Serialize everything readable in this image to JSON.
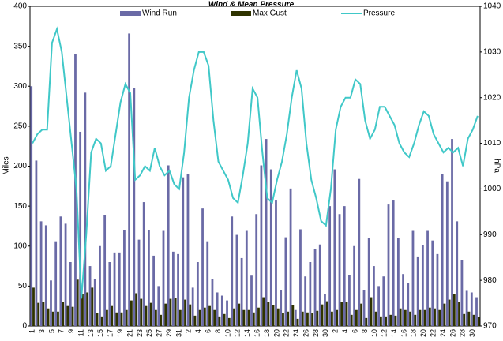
{
  "chart_data": {
    "type": "bar_line",
    "title": "Wind & Mean Pressure",
    "y_label": "Miles",
    "y2_label": "hPa",
    "categories": [
      "1",
      null,
      "3",
      null,
      "5",
      null,
      "7",
      null,
      "9",
      null,
      "11",
      null,
      "13",
      null,
      "15",
      null,
      "17",
      null,
      "19",
      null,
      "21",
      null,
      "23",
      null,
      "25",
      null,
      "27",
      null,
      "29",
      null,
      "31",
      null,
      "2",
      null,
      "4",
      null,
      "6",
      null,
      "8",
      null,
      "10",
      null,
      "12",
      null,
      "14",
      null,
      "16",
      null,
      "18",
      null,
      "20",
      null,
      "22",
      null,
      "24",
      null,
      "26",
      null,
      "28",
      null,
      "30",
      null,
      "2",
      null,
      "4",
      null,
      "6",
      null,
      "8",
      null,
      "10",
      null,
      "12",
      null,
      "14",
      null,
      "16",
      null,
      "18",
      null,
      "20",
      null,
      "22",
      null,
      "24",
      null,
      "26",
      null,
      "28",
      null,
      "30",
      null
    ],
    "series": [
      {
        "name": "Wind Run",
        "color": "#6a6aa6",
        "kind": "bar",
        "values": [
          300,
          207,
          131,
          126,
          57,
          106,
          137,
          128,
          80,
          340,
          243,
          292,
          75,
          59,
          100,
          139,
          80,
          92,
          92,
          120,
          366,
          298,
          108,
          155,
          120,
          88,
          50,
          119,
          201,
          93,
          90,
          186,
          190,
          48,
          80,
          147,
          106,
          59,
          42,
          38,
          32,
          137,
          114,
          85,
          119,
          63,
          140,
          201,
          234,
          196,
          157,
          45,
          111,
          172,
          20,
          121,
          62,
          80,
          96,
          102,
          40,
          150,
          196,
          140,
          150,
          64,
          100,
          184,
          45,
          110,
          75,
          50,
          62,
          152,
          157,
          110,
          65,
          54,
          119,
          87,
          101,
          119,
          107,
          90,
          190,
          181,
          234,
          131,
          82,
          44,
          42,
          36
        ]
      },
      {
        "name": "Max Gust",
        "color": "#2f3300",
        "kind": "bar",
        "values": [
          48,
          29,
          30,
          22,
          18,
          18,
          30,
          25,
          24,
          58,
          40,
          42,
          48,
          16,
          12,
          20,
          25,
          17,
          17,
          20,
          32,
          41,
          34,
          25,
          29,
          20,
          14,
          28,
          34,
          35,
          20,
          33,
          27,
          13,
          20,
          23,
          25,
          20,
          12,
          15,
          10,
          22,
          28,
          20,
          20,
          17,
          23,
          36,
          30,
          26,
          22,
          16,
          18,
          26,
          9,
          18,
          17,
          16,
          19,
          27,
          31,
          18,
          20,
          30,
          30,
          14,
          20,
          28,
          10,
          36,
          18,
          12,
          12,
          14,
          13,
          22,
          20,
          18,
          14,
          20,
          20,
          23,
          22,
          20,
          28,
          33,
          40,
          30,
          15,
          18,
          14,
          11
        ]
      },
      {
        "name": "Pressure",
        "color": "#40c8c8",
        "kind": "line",
        "axis": "y2",
        "values": [
          1010,
          1012,
          1013,
          1013,
          1032,
          1035,
          1030,
          1020,
          1010,
          1000,
          976,
          990,
          1008,
          1011,
          1010,
          1004,
          1005,
          1012,
          1019,
          1023,
          1021,
          1002,
          1003,
          1005,
          1004,
          1009,
          1005,
          1003,
          1004,
          1001,
          1000,
          1008,
          1020,
          1026,
          1030,
          1030,
          1027,
          1015,
          1006,
          1004,
          1002,
          998,
          997,
          1003,
          1010,
          1022,
          1020,
          1008,
          998,
          997,
          1002,
          1006,
          1012,
          1020,
          1026,
          1022,
          1010,
          1002,
          998,
          993,
          992,
          1000,
          1013,
          1018,
          1020,
          1020,
          1024,
          1023,
          1015,
          1011,
          1013,
          1018,
          1018,
          1016,
          1014,
          1010,
          1008,
          1007,
          1010,
          1014,
          1017,
          1016,
          1012,
          1010,
          1008,
          1009,
          1008,
          1009,
          1005,
          1011,
          1013,
          1016
        ]
      }
    ],
    "ylim": [
      0,
      400
    ],
    "yticks": [
      0,
      50,
      100,
      150,
      200,
      250,
      300,
      350,
      400
    ],
    "y2lim": [
      970,
      1040
    ],
    "y2ticks": [
      970,
      980,
      990,
      1000,
      1010,
      1020,
      1030,
      1040
    ]
  }
}
